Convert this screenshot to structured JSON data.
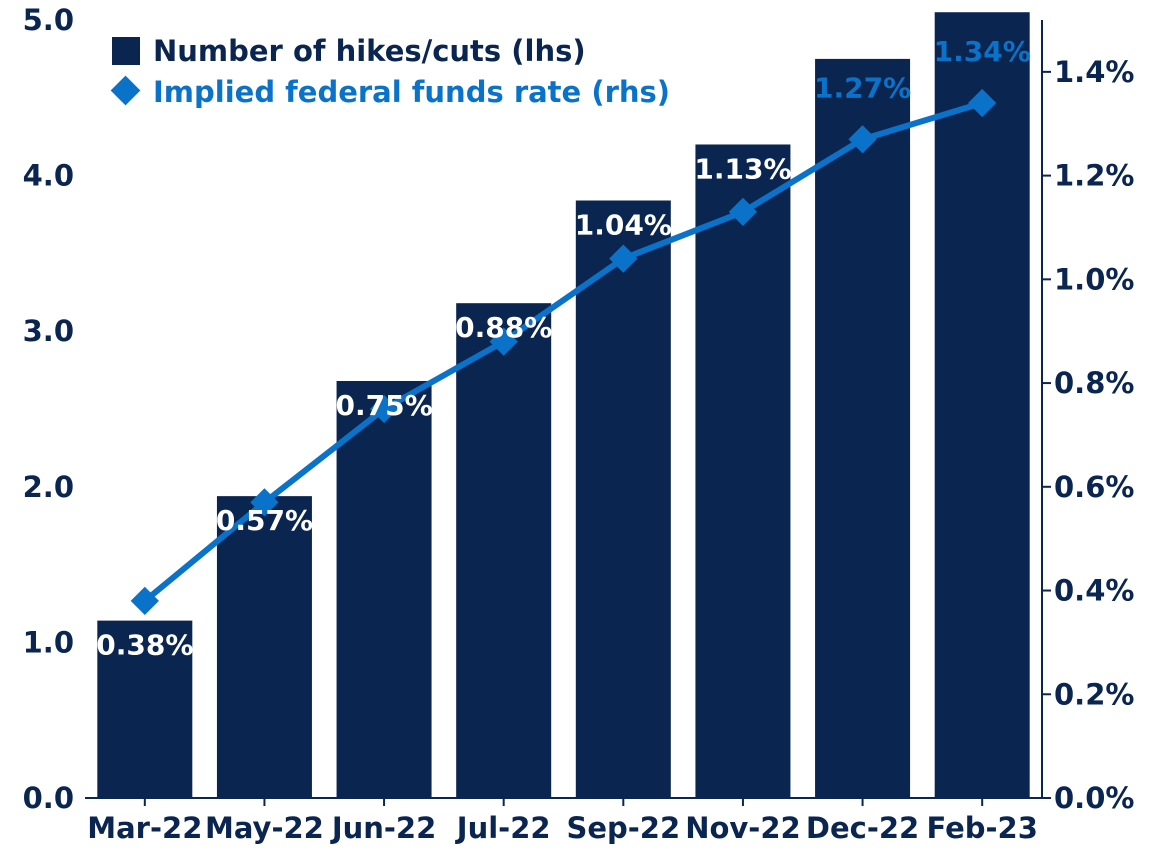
{
  "chart_data": {
    "type": "bar",
    "categories": [
      "Mar-22",
      "May-22",
      "Jun-22",
      "Jul-22",
      "Sep-22",
      "Nov-22",
      "Dec-22",
      "Feb-23"
    ],
    "series": [
      {
        "name": "Number of hikes/cuts (lhs)",
        "type": "bar",
        "axis": "left",
        "color": "#0a2550",
        "values": [
          1.14,
          1.94,
          2.68,
          3.18,
          3.84,
          4.2,
          4.75,
          5.05
        ]
      },
      {
        "name": "Implied federal funds rate (rhs)",
        "type": "line",
        "marker": "diamond",
        "axis": "right",
        "color": "#0b72c9",
        "values": [
          0.38,
          0.57,
          0.75,
          0.88,
          1.04,
          1.13,
          1.27,
          1.34
        ],
        "labels": [
          "0.38%",
          "0.57%",
          "0.75%",
          "0.88%",
          "1.04%",
          "1.13%",
          "1.27%",
          "1.34%"
        ]
      }
    ],
    "left_axis": {
      "ylim": [
        0,
        5
      ],
      "ticks": [
        0,
        1,
        2,
        3,
        4,
        5
      ],
      "tick_labels": [
        "0.0",
        "1.0",
        "2.0",
        "3.0",
        "4.0",
        "5.0"
      ]
    },
    "right_axis": {
      "ylim": [
        0,
        1.5
      ],
      "ticks": [
        0,
        0.2,
        0.4,
        0.6,
        0.8,
        1.0,
        1.2,
        1.4
      ],
      "tick_labels": [
        "0.0%",
        "0.2%",
        "0.4%",
        "0.6%",
        "0.8%",
        "1.0%",
        "1.2%",
        "1.4%"
      ]
    },
    "legend_position": "top-left",
    "grid": false
  }
}
